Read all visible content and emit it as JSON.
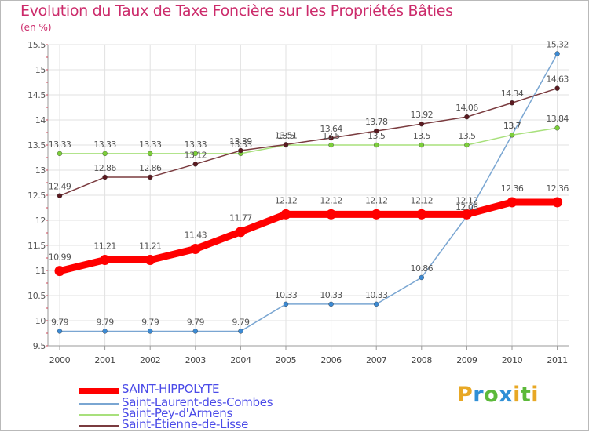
{
  "header": {
    "title": "Evolution du Taux de Taxe Foncière sur les Propriétés Bâties",
    "unit": "(en %)"
  },
  "logo": {
    "letters": [
      "P",
      "r",
      "o",
      "x",
      "i",
      "t",
      "i"
    ],
    "colors": [
      "#e8a825",
      "#2f8fd6",
      "#5cb93a",
      "#2f8fd6",
      "#e8a825",
      "#5cb93a",
      "#e8a825"
    ]
  },
  "chart_data": {
    "type": "line",
    "title": "Evolution du Taux de Taxe Foncière sur les Propriétés Bâties",
    "ylabel": "(en %)",
    "xlabel": "",
    "ylim": [
      9.5,
      15.5
    ],
    "yticks": [
      "9.5",
      "10",
      "10.5",
      "11",
      "11.5",
      "12",
      "12.5",
      "13",
      "13.5",
      "14",
      "14.5",
      "15",
      "15.5"
    ],
    "categories": [
      "2000",
      "2001",
      "2002",
      "2003",
      "2004",
      "2005",
      "2006",
      "2007",
      "2008",
      "2009",
      "2010",
      "2011"
    ],
    "series": [
      {
        "name": "Saint-Laurent-des-Combes",
        "color": "#7aa6d2",
        "marker": "#3b8ad4",
        "values": [
          9.79,
          9.79,
          9.79,
          9.79,
          9.79,
          10.33,
          10.33,
          10.33,
          10.86,
          12.08,
          13.7,
          15.32
        ],
        "labels": [
          "9.79",
          "9.79",
          "9.79",
          "9.79",
          "9.79",
          "10.33",
          "10.33",
          "10.33",
          "10.86",
          "12.08",
          "13.7",
          "15.32"
        ]
      },
      {
        "name": "Saint-Pey-d'Armens",
        "color": "#a8e07c",
        "marker": "#7ccf3a",
        "values": [
          13.33,
          13.33,
          13.33,
          13.33,
          13.33,
          13.5,
          13.5,
          13.5,
          13.5,
          13.5,
          13.7,
          13.84
        ],
        "labels": [
          "13.33",
          "13.33",
          "13.33",
          "13.33",
          "13.33",
          "13.5",
          "13.5",
          "13.5",
          "13.5",
          "13.5",
          "13.7",
          "13.84"
        ]
      },
      {
        "name": "Saint-Étienne-de-Lisse",
        "color": "#7a3b3f",
        "marker": "#5a1a20",
        "values": [
          12.49,
          12.86,
          12.86,
          13.12,
          13.39,
          13.51,
          13.64,
          13.78,
          13.92,
          14.06,
          14.34,
          14.63
        ],
        "labels": [
          "12.49",
          "12.86",
          "12.86",
          "13.12",
          "13.39",
          "13.51",
          "13.64",
          "13.78",
          "13.92",
          "14.06",
          "14.34",
          "14.63"
        ]
      },
      {
        "name": "SAINT-HIPPOLYTE",
        "color": "#ff0000",
        "marker": "#ff0000",
        "values": [
          10.99,
          11.21,
          11.21,
          11.43,
          11.77,
          12.12,
          12.12,
          12.12,
          12.12,
          12.12,
          12.36,
          12.36
        ],
        "labels": [
          "10.99",
          "11.21",
          "11.21",
          "11.43",
          "11.77",
          "12.12",
          "12.12",
          "12.12",
          "12.12",
          "12.12",
          "12.36",
          "12.36"
        ]
      }
    ],
    "legend": {
      "position": "bottom-left",
      "entries": [
        "SAINT-HIPPOLYTE",
        "Saint-Laurent-des-Combes",
        "Saint-Pey-d'Armens",
        "Saint-Étienne-de-Lisse"
      ]
    },
    "grid": true
  }
}
